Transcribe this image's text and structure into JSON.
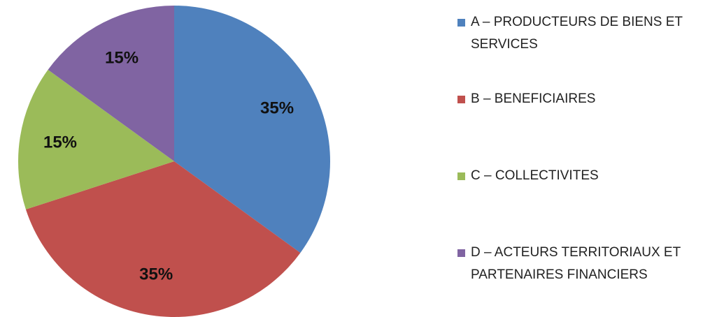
{
  "chart_data": {
    "type": "pie",
    "categories": [
      "A – PRODUCTEURS DE BIENS ET SERVICES",
      "B – BENEFICIAIRES",
      "C – COLLECTIVITES",
      "D – ACTEURS TERRITORIAUX ET PARTENAIRES FINANCIERS"
    ],
    "values": [
      35,
      35,
      15,
      15
    ],
    "value_labels": [
      "35%",
      "35%",
      "15%",
      "15%"
    ],
    "colors": [
      "#4f81bd",
      "#c0504d",
      "#9bbb59",
      "#8064a2"
    ],
    "legend": "right"
  }
}
